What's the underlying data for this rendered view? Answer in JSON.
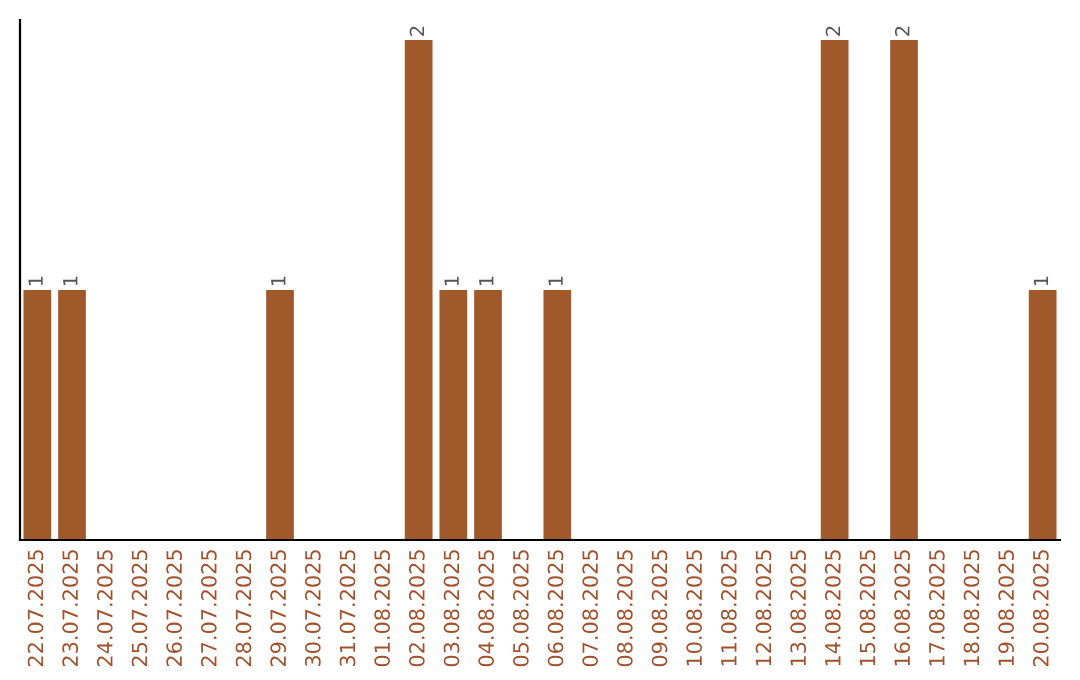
{
  "chart_data": {
    "type": "bar",
    "categories": [
      "22.07.2025",
      "23.07.2025",
      "24.07.2025",
      "25.07.2025",
      "26.07.2025",
      "27.07.2025",
      "28.07.2025",
      "29.07.2025",
      "30.07.2025",
      "31.07.2025",
      "01.08.2025",
      "02.08.2025",
      "03.08.2025",
      "04.08.2025",
      "05.08.2025",
      "06.08.2025",
      "07.08.2025",
      "08.08.2025",
      "09.08.2025",
      "10.08.2025",
      "11.08.2025",
      "12.08.2025",
      "13.08.2025",
      "14.08.2025",
      "15.08.2025",
      "16.08.2025",
      "17.08.2025",
      "18.08.2025",
      "19.08.2025",
      "20.08.2025"
    ],
    "values": [
      1,
      1,
      0,
      0,
      0,
      0,
      0,
      1,
      0,
      0,
      0,
      2,
      1,
      1,
      0,
      1,
      0,
      0,
      0,
      0,
      0,
      0,
      0,
      2,
      0,
      2,
      0,
      0,
      0,
      1
    ],
    "value_labels": [
      "1",
      "1",
      null,
      null,
      null,
      null,
      null,
      "1",
      null,
      null,
      null,
      "2",
      "1",
      "1",
      null,
      "1",
      null,
      null,
      null,
      null,
      null,
      null,
      null,
      "2",
      null,
      "2",
      null,
      null,
      null,
      "1"
    ],
    "color": "#a0592a",
    "grid": false,
    "legend": false
  }
}
